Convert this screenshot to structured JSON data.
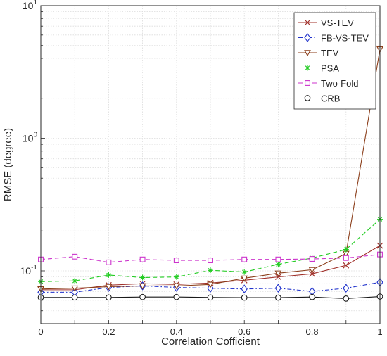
{
  "chart_data": {
    "type": "line",
    "title": "",
    "xlabel": "Correlation Cofficient",
    "ylabel": "RMSE (degree)",
    "xlim": [
      0,
      1
    ],
    "ylim": [
      0.04,
      10
    ],
    "yscale": "log",
    "grid": true,
    "legend_position": "top-right",
    "x": [
      0,
      0.1,
      0.2,
      0.3,
      0.4,
      0.5,
      0.6,
      0.7,
      0.8,
      0.9,
      1
    ],
    "x_ticks": [
      "0",
      "0.2",
      "0.4",
      "0.6",
      "0.8",
      "1"
    ],
    "y_ticks": [
      {
        "base": "10",
        "exp": "-1"
      },
      {
        "base": "10",
        "exp": "0"
      },
      {
        "base": "10",
        "exp": "1"
      }
    ],
    "series": [
      {
        "name": "VS-TEV",
        "color": "#a0302a",
        "linestyle": "solid",
        "marker": "x",
        "values": [
          0.072,
          0.072,
          0.078,
          0.08,
          0.079,
          0.081,
          0.085,
          0.09,
          0.095,
          0.11,
          0.155
        ]
      },
      {
        "name": "FB-VS-TEV",
        "color": "#2133cc",
        "linestyle": "dashdot",
        "marker": "diamond",
        "values": [
          0.069,
          0.069,
          0.075,
          0.077,
          0.075,
          0.074,
          0.073,
          0.074,
          0.07,
          0.074,
          0.082
        ]
      },
      {
        "name": "TEV",
        "color": "#8b3e1a",
        "linestyle": "solid",
        "marker": "triangle-down",
        "values": [
          0.073,
          0.074,
          0.076,
          0.077,
          0.077,
          0.079,
          0.088,
          0.096,
          0.102,
          0.135,
          4.7
        ]
      },
      {
        "name": "PSA",
        "color": "#22cc22",
        "linestyle": "dashed",
        "marker": "star",
        "values": [
          0.083,
          0.084,
          0.093,
          0.089,
          0.09,
          0.101,
          0.098,
          0.112,
          0.125,
          0.145,
          0.245
        ]
      },
      {
        "name": "Two-Fold",
        "color": "#cc33cc",
        "linestyle": "dashed",
        "marker": "square",
        "values": [
          0.122,
          0.128,
          0.116,
          0.122,
          0.12,
          0.12,
          0.122,
          0.122,
          0.123,
          0.125,
          0.133
        ]
      },
      {
        "name": "CRB",
        "color": "#1a1a1a",
        "linestyle": "solid",
        "marker": "circle",
        "values": [
          0.063,
          0.063,
          0.063,
          0.0635,
          0.0635,
          0.063,
          0.0628,
          0.0628,
          0.0635,
          0.0618,
          0.064
        ]
      }
    ]
  }
}
